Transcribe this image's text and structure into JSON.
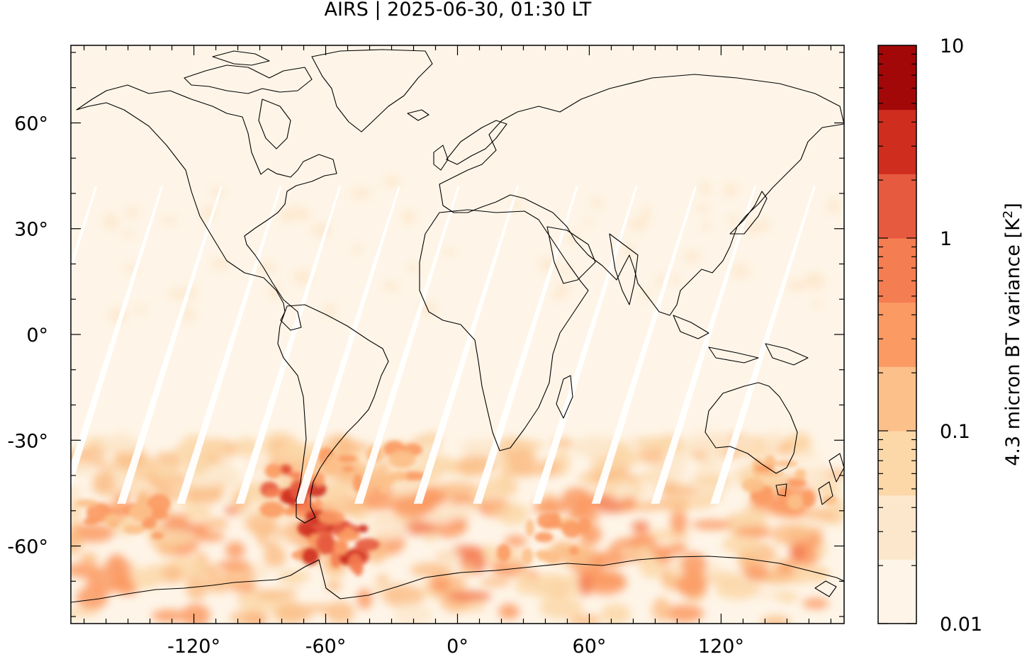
{
  "title": "AIRS | 2025-06-30, 01:30 LT",
  "map": {
    "projection": "equirectangular",
    "lon_range": [
      -176,
      176
    ],
    "lat_range": [
      -82,
      82
    ],
    "x_ticks": [
      "-120°",
      "-60°",
      "0°",
      "60°",
      "120°"
    ],
    "x_tick_values": [
      -120,
      -60,
      0,
      60,
      120
    ],
    "y_ticks": [
      "60°",
      "30°",
      "0°",
      "-30°",
      "-60°"
    ],
    "y_tick_values": [
      60,
      30,
      0,
      -30,
      -60
    ],
    "field": "4.3 micron BT variance",
    "swath_gaps": "white diagonal data gaps between satellite orbits",
    "hotspots": [
      {
        "region": "southern Andes / Drake Passage",
        "lon": -55,
        "lat": -60,
        "level": "high"
      },
      {
        "region": "southern Patagonia",
        "lon": -72,
        "lat": -45,
        "level": "high"
      },
      {
        "region": "South Pacific storm track",
        "lon": -150,
        "lat": -52,
        "level": "medium"
      },
      {
        "region": "Southern Ocean",
        "lon": 40,
        "lat": -58,
        "level": "medium"
      },
      {
        "region": "Tasmania / SE Australia",
        "lon": 150,
        "lat": -42,
        "level": "medium"
      },
      {
        "region": "South Atlantic",
        "lon": -40,
        "lat": -38,
        "level": "medium"
      }
    ]
  },
  "colorbar": {
    "label": "4.3 micron BT variance [K²]",
    "label_text": "4.3 micron BT variance [K",
    "label_sup": "2",
    "label_end": "]",
    "scale": "log",
    "range": [
      0.01,
      10
    ],
    "tick_labels": [
      "10",
      "1",
      "0.1",
      "0.01"
    ],
    "tick_values": [
      10,
      1,
      0.1,
      0.01
    ],
    "bins": [
      "#fef5e8",
      "#fde7cc",
      "#fcd7a8",
      "#fcc08a",
      "#fb9a63",
      "#f57d52",
      "#e65a3f",
      "#cf2e1f",
      "#a30808"
    ]
  }
}
